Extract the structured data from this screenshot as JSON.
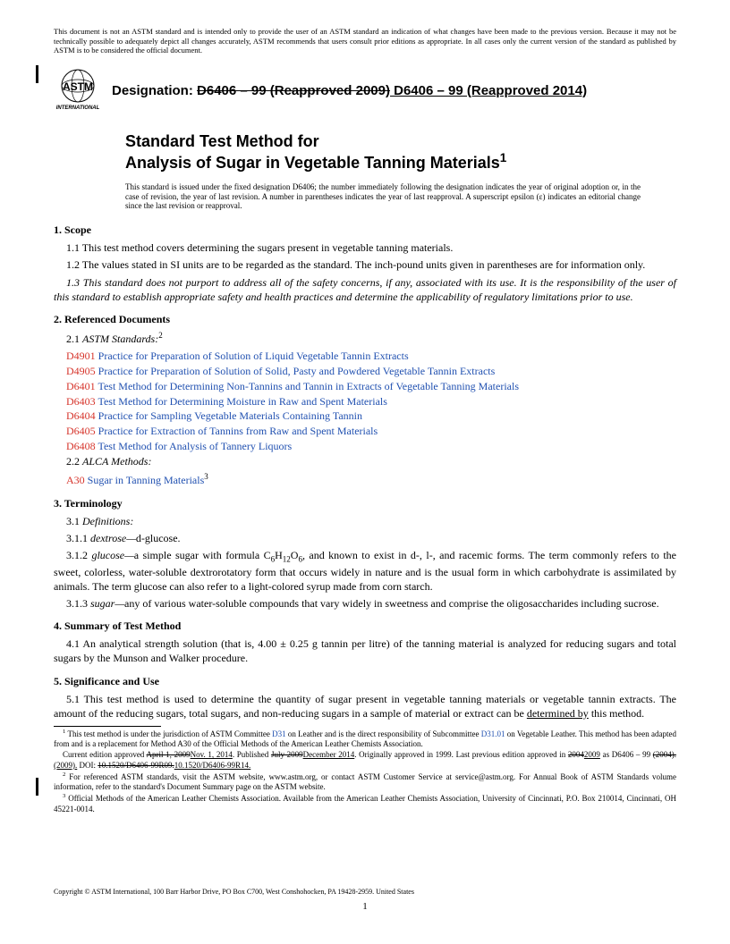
{
  "colors": {
    "ref_code": "#d6342b",
    "ref_link": "#2050b0",
    "text": "#000000",
    "bg": "#ffffff"
  },
  "disclaimer": "This document is not an ASTM standard and is intended only to provide the user of an ASTM standard an indication of what changes have been made to the previous version. Because it may not be technically possible to adequately depict all changes accurately, ASTM recommends that users consult prior editions as appropriate. In all cases only the current version of the standard as published by ASTM is to be considered the official document.",
  "logo_label": "INTERNATIONAL",
  "designation": {
    "label": "Designation: ",
    "old": "D6406 – 99 (Reapproved 2009)",
    "new": " D6406 – 99 (Reapproved 2014)"
  },
  "title": {
    "line1": "Standard Test Method for",
    "line2": "Analysis of Sugar in Vegetable Tanning Materials",
    "sup": "1"
  },
  "intro_note": "This standard is issued under the fixed designation D6406; the number immediately following the designation indicates the year of original adoption or, in the case of revision, the year of last revision. A number in parentheses indicates the year of last reapproval. A superscript epsilon (ε) indicates an editorial change since the last revision or reapproval.",
  "sections": {
    "scope": {
      "heading": "1. Scope",
      "p1": "1.1 This test method covers determining the sugars present in vegetable tanning materials.",
      "p2": "1.2 The values stated in SI units are to be regarded as the standard. The inch-pound units given in parentheses are for information only.",
      "p3": "1.3 This standard does not purport to address all of the safety concerns, if any, associated with its use. It is the responsibility of the user of this standard to establish appropriate safety and health practices and determine the applicability of regulatory limitations prior to use."
    },
    "refdocs": {
      "heading": "2. Referenced Documents",
      "sub21_pre": "2.1 ",
      "sub21_it": "ASTM Standards:",
      "sub21_sup": "2",
      "items": [
        {
          "code": "D4901",
          "text": "Practice for Preparation of Solution of Liquid Vegetable Tannin Extracts"
        },
        {
          "code": "D4905",
          "text": "Practice for Preparation of Solution of Solid, Pasty and Powdered Vegetable Tannin Extracts"
        },
        {
          "code": "D6401",
          "text": "Test Method for Determining Non-Tannins and Tannin in Extracts of Vegetable Tanning Materials"
        },
        {
          "code": "D6403",
          "text": "Test Method for Determining Moisture in Raw and Spent Materials"
        },
        {
          "code": "D6404",
          "text": "Practice for Sampling Vegetable Materials Containing Tannin"
        },
        {
          "code": "D6405",
          "text": "Practice for Extraction of Tannins from Raw and Spent Materials"
        },
        {
          "code": "D6408",
          "text": "Test Method for Analysis of Tannery Liquors"
        }
      ],
      "sub22_pre": "2.2 ",
      "sub22_it": "ALCA Methods:",
      "alca": {
        "code": "A30",
        "text": "Sugar in Tanning Materials",
        "sup": "3"
      }
    },
    "terminology": {
      "heading": "3. Terminology",
      "sub31": "3.1 Definitions:",
      "sub311": "3.1.1 dextrose—d-glucose.",
      "sub312_a": "3.1.2 ",
      "sub312_b": "glucose—",
      "sub312_c": "a simple sugar with formula C",
      "sub312_d": "H",
      "sub312_e": "O",
      "sub312_f": ", and known to exist in d-, l-, and racemic forms. The term commonly refers to the sweet, colorless, water-soluble dextrorotatory form that occurs widely in nature and is the usual form in which carbohydrate is assimilated by animals. The term glucose can also refer to a light-colored syrup made from corn starch.",
      "sub313_a": "3.1.3 ",
      "sub313_b": "sugar—",
      "sub313_c": "any of various water-soluble compounds that vary widely in sweetness and comprise the oligosaccharides including sucrose."
    },
    "summary": {
      "heading": "4. Summary of Test Method",
      "p1": "4.1  An analytical strength solution (that is, 4.00 ± 0.25 g tannin per litre) of the tanning material is analyzed for reducing sugars and total sugars by the Munson and Walker procedure."
    },
    "significance": {
      "heading": "5. Significance and Use",
      "p1_a": "5.1 This test method is used to determine the quantity of sugar present in vegetable tanning materials or vegetable tannin extracts. The amount of the reducing sugars, total sugars, and non-reducing sugars in a sample of material or extract can be ",
      "p1_b": "determined by",
      "p1_c": " this method."
    }
  },
  "footnotes": {
    "f1_a": " This test method is under the jurisdiction of ASTM Committee ",
    "f1_b": "D31",
    "f1_c": " on Leather and is the direct responsibility of Subcommittee ",
    "f1_d": "D31.01",
    "f1_e": " on Vegetable Leather. This method has been adapted from and is a replacement for Method A30 of the Official Methods of the American Leather Chemists Association.",
    "f1l2_a": "Current edition approved ",
    "f1l2_b": "April 1, 2009",
    "f1l2_c": "Nov. 1, 2014",
    "f1l2_d": ". Published ",
    "f1l2_e": "July 2009",
    "f1l2_f": "December 2014",
    "f1l2_g": ". Originally approved in 1999. Last previous edition approved in ",
    "f1l2_h": "2004",
    "f1l2_i": "2009",
    "f1l2_j": " as D6406 – 99 ",
    "f1l2_k": "(2004).",
    "f1l2_l": "(2009).",
    "f1l2_m": " DOI: ",
    "f1l2_n": "10.1520/D6406-99R09.",
    "f1l2_o": "10.1520/D6406-99R14.",
    "f2": " For referenced ASTM standards, visit the ASTM website, www.astm.org, or contact ASTM Customer Service at service@astm.org. For Annual Book of ASTM Standards volume information, refer to the standard's Document Summary page on the ASTM website.",
    "f3": " Official Methods of the American Leather Chemists Association. Available from the American Leather Chemists Association, University of Cincinnati, P.O. Box 210014, Cincinnati, OH 45221-0014."
  },
  "copyright": "Copyright © ASTM International, 100 Barr Harbor Drive, PO Box C700, West Conshohocken, PA 19428-2959. United States",
  "page_number": "1"
}
